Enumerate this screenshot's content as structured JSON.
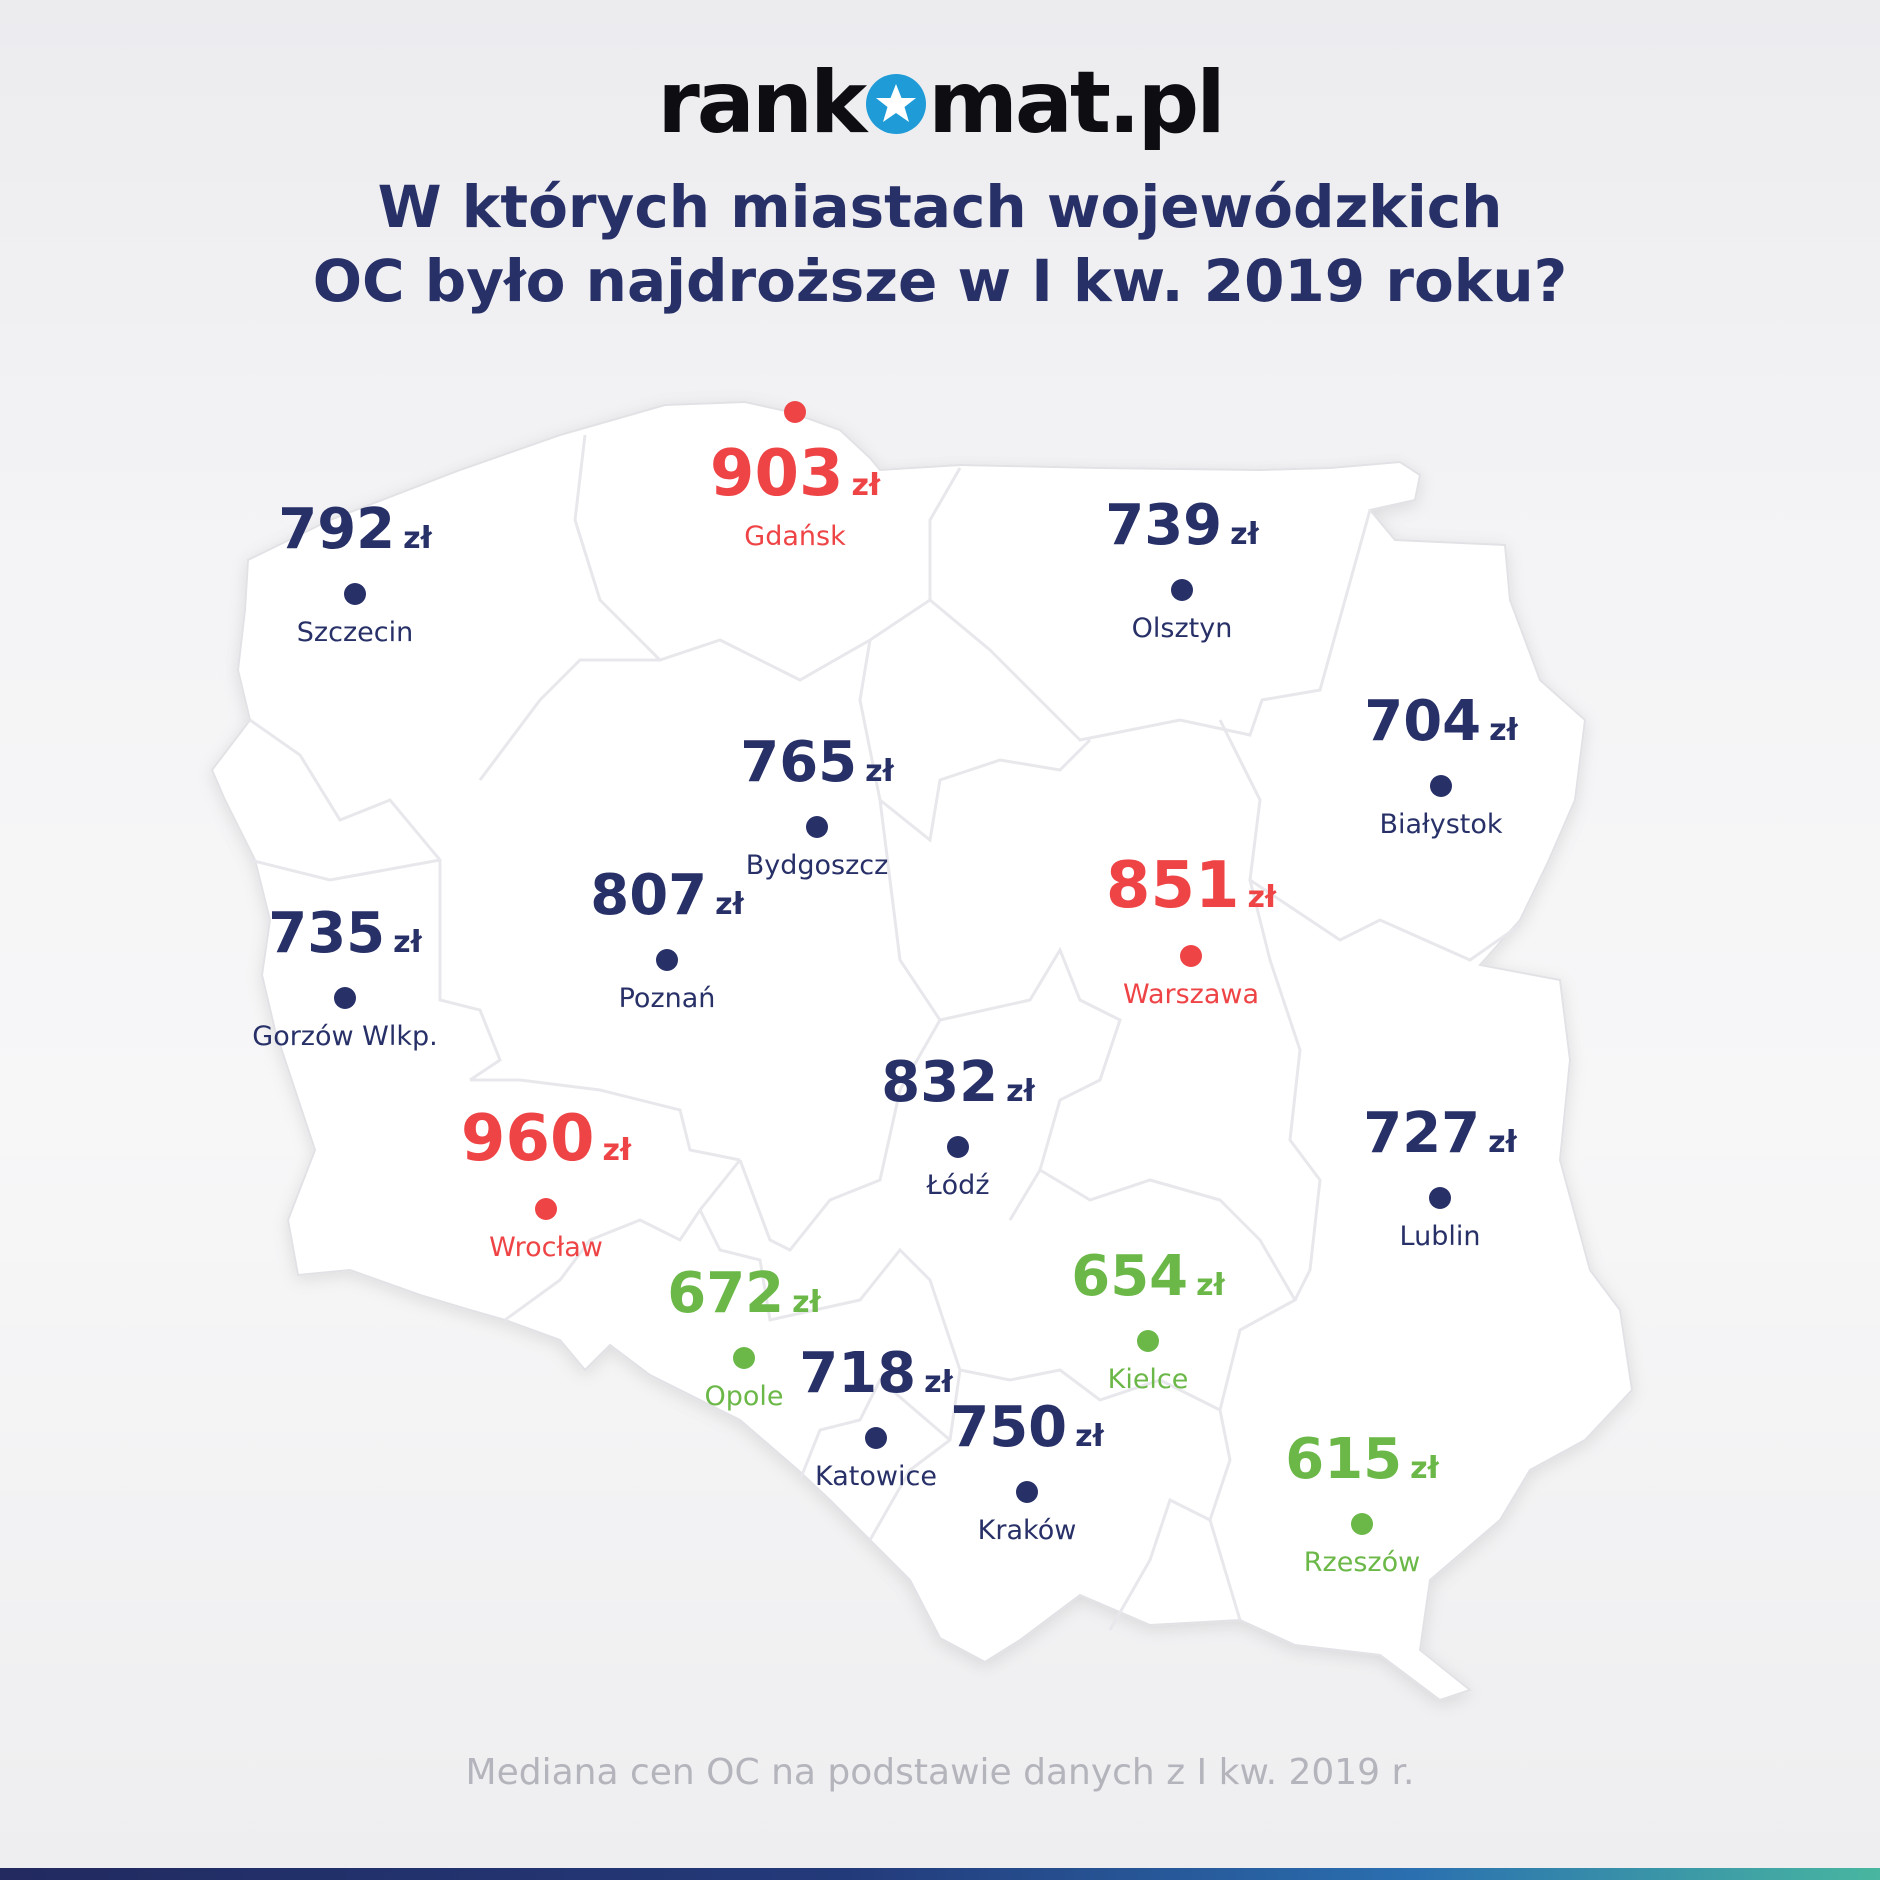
{
  "logo": {
    "left": "rank",
    "right": "mat.pl"
  },
  "title": {
    "line1": "W których miastach wojewódzkich",
    "line2": "OC było najdroższe w I kw. 2019 roku?"
  },
  "footer": "Mediana cen OC na podstawie danych z I kw. 2019 r.",
  "currency": "zł",
  "colors": {
    "navy": "#283068",
    "red": "#ef4446",
    "green": "#6bb848",
    "logo_blue": "#1f9bd8"
  },
  "cities": [
    {
      "name": "Gdańsk",
      "price": "903",
      "category": "red"
    },
    {
      "name": "Szczecin",
      "price": "792",
      "category": "navy"
    },
    {
      "name": "Olsztyn",
      "price": "739",
      "category": "navy"
    },
    {
      "name": "Białystok",
      "price": "704",
      "category": "navy"
    },
    {
      "name": "Bydgoszcz",
      "price": "765",
      "category": "navy"
    },
    {
      "name": "Poznań",
      "price": "807",
      "category": "navy"
    },
    {
      "name": "Gorzów Wlkp.",
      "price": "735",
      "category": "navy"
    },
    {
      "name": "Warszawa",
      "price": "851",
      "category": "red"
    },
    {
      "name": "Łódź",
      "price": "832",
      "category": "navy"
    },
    {
      "name": "Wrocław",
      "price": "960",
      "category": "red"
    },
    {
      "name": "Lublin",
      "price": "727",
      "category": "navy"
    },
    {
      "name": "Opole",
      "price": "672",
      "category": "green"
    },
    {
      "name": "Kielce",
      "price": "654",
      "category": "green"
    },
    {
      "name": "Katowice",
      "price": "718",
      "category": "navy"
    },
    {
      "name": "Kraków",
      "price": "750",
      "category": "navy"
    },
    {
      "name": "Rzeszów",
      "price": "615",
      "category": "green"
    }
  ]
}
